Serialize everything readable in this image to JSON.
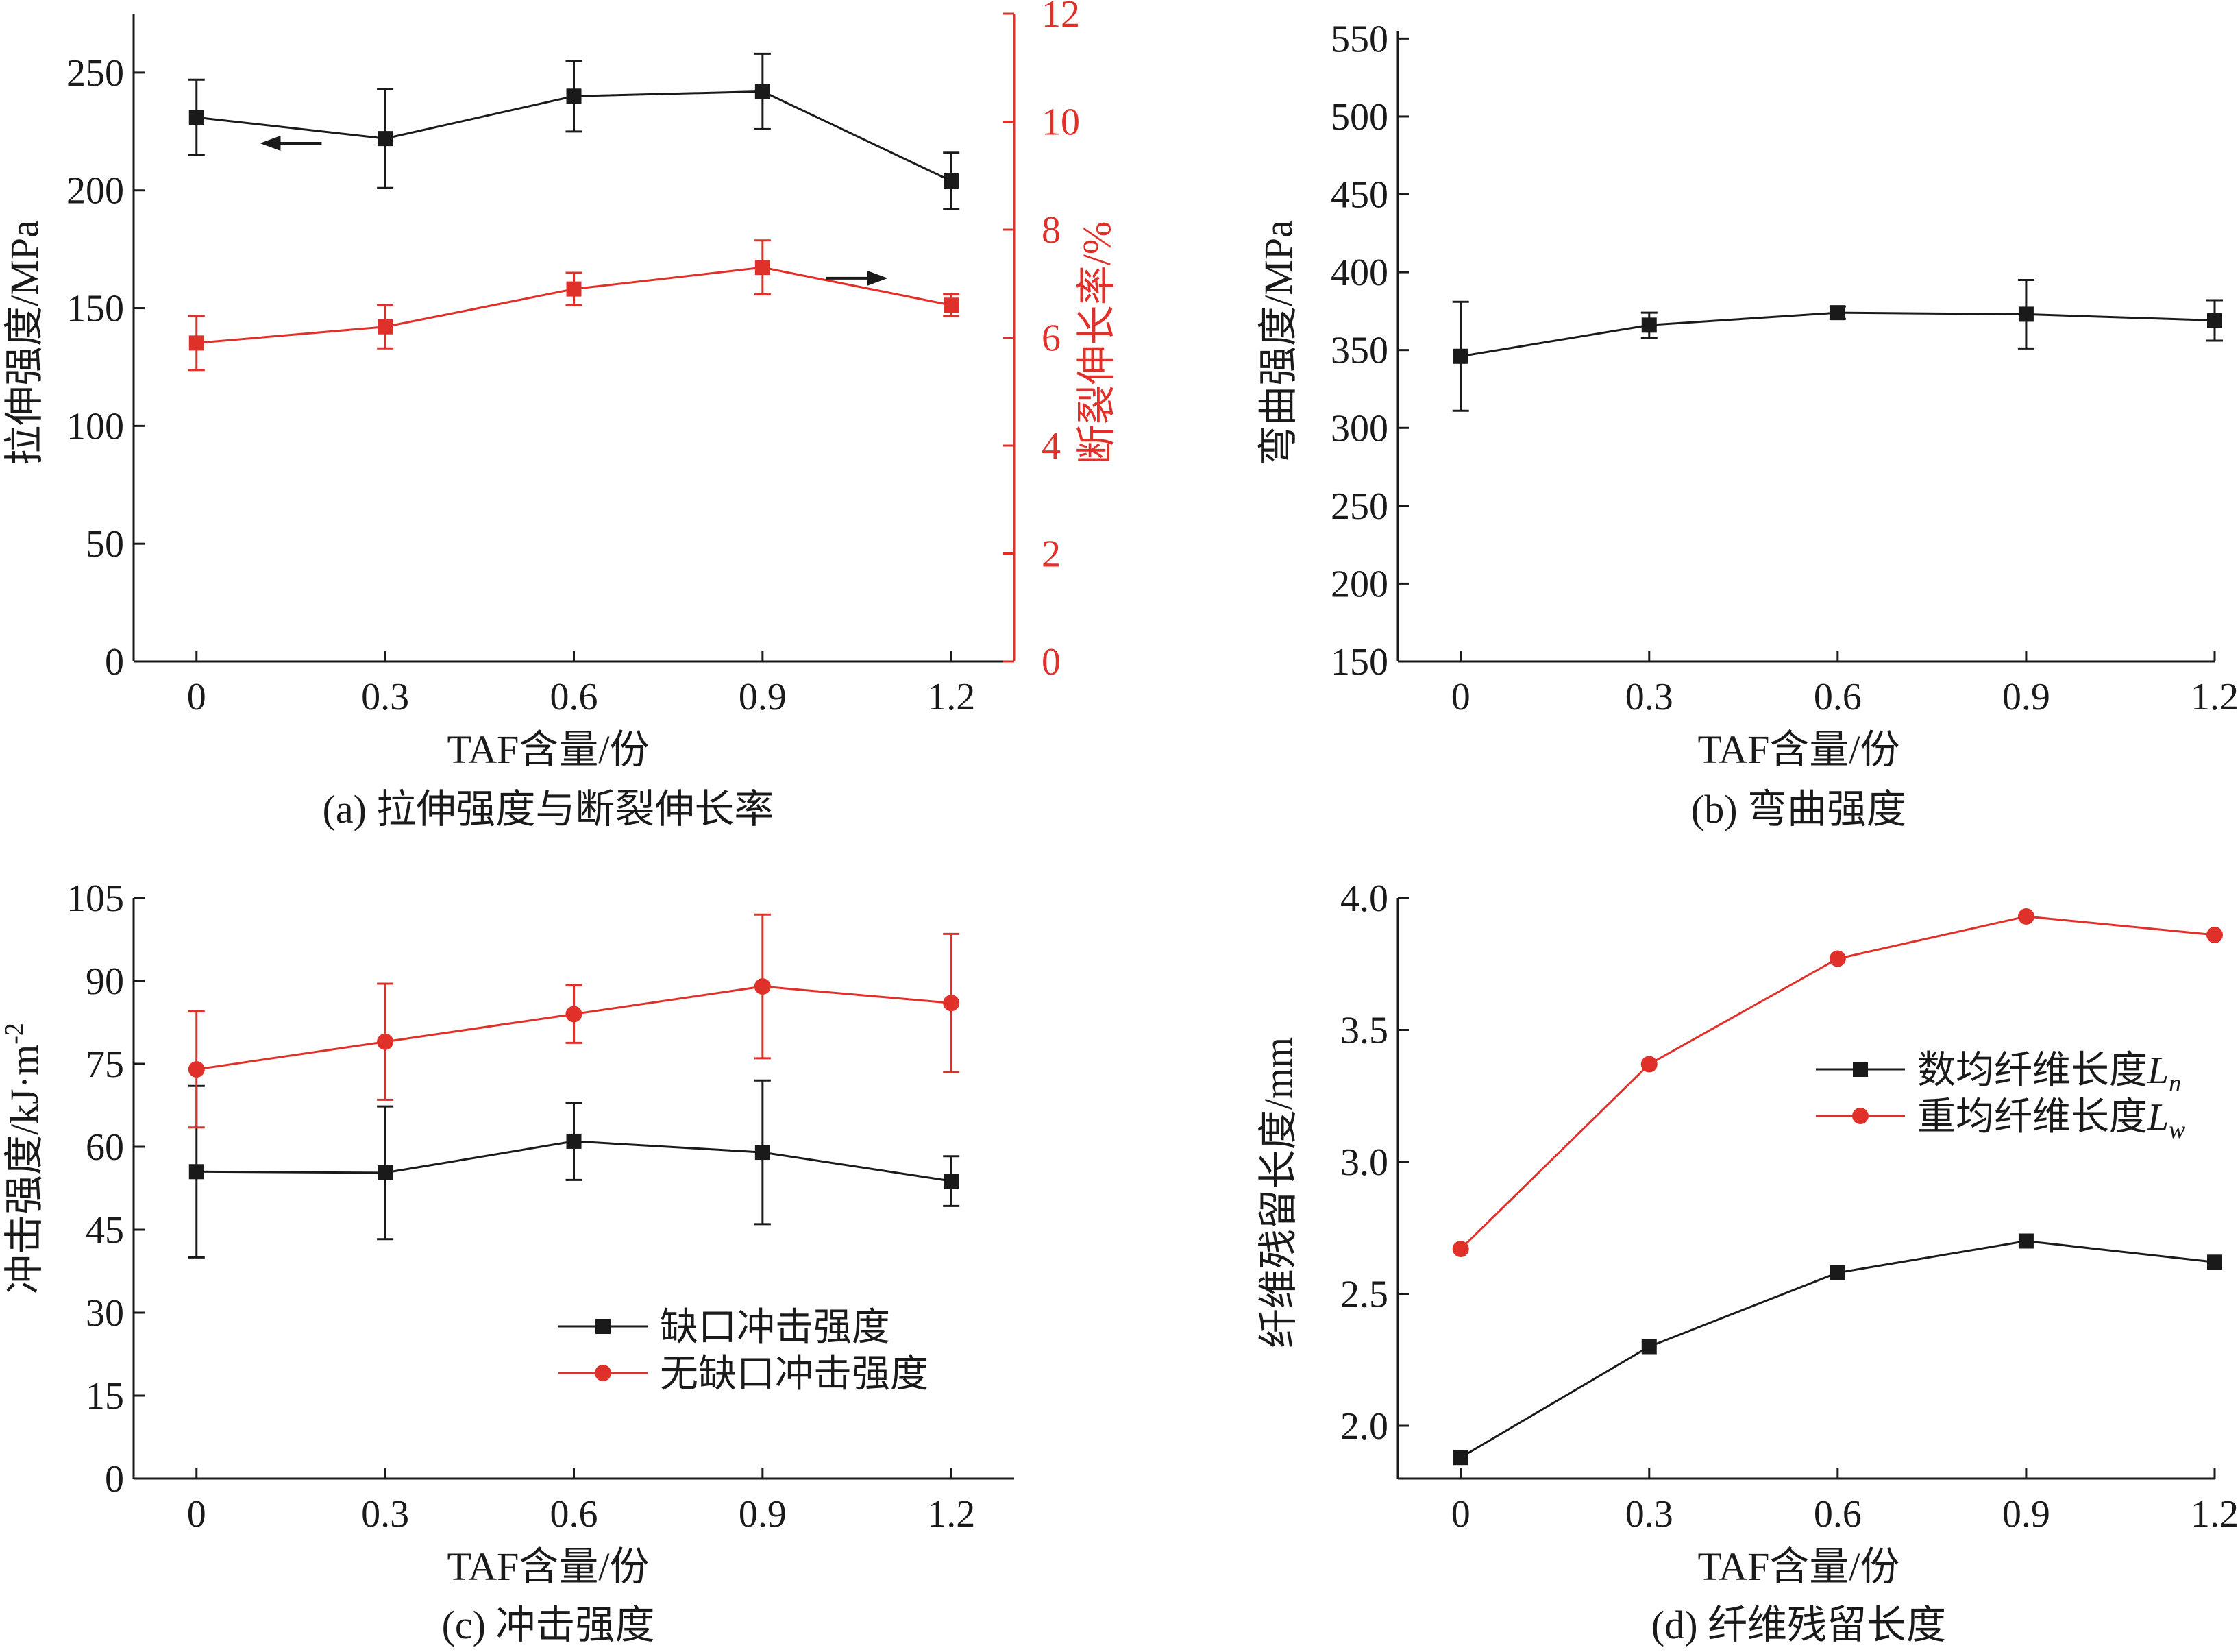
{
  "colors": {
    "black": "#1a1a1a",
    "red": "#e0302a"
  },
  "chart_data": [
    {
      "id": "a",
      "type": "line",
      "caption": "(a) 拉伸强度与断裂伸长率",
      "xlabel": "TAF含量/份",
      "ylabel": "拉伸强度/MPa",
      "y2label": "断裂伸长率/%",
      "x": [
        0,
        0.3,
        0.6,
        0.9,
        1.2
      ],
      "xticks": [
        "0",
        "0.3",
        "0.6",
        "0.9",
        "1.2"
      ],
      "xlim": [
        -0.1,
        1.3
      ],
      "ylim": [
        0,
        275
      ],
      "yticks": [
        "0",
        "50",
        "100",
        "150",
        "200",
        "250"
      ],
      "y2lim": [
        0,
        12
      ],
      "y2ticks": [
        "0",
        "2",
        "4",
        "6",
        "8",
        "10",
        "12"
      ],
      "series": [
        {
          "axis": "left",
          "color": "#1a1a1a",
          "marker": "square",
          "values": [
            231,
            222,
            240,
            242,
            204
          ],
          "errors": [
            16,
            21,
            15,
            16,
            12
          ],
          "arrow": {
            "direction": "left",
            "x": 0.15,
            "y": 220
          }
        },
        {
          "axis": "right",
          "color": "#e0302a",
          "marker": "square",
          "values": [
            5.9,
            6.2,
            6.9,
            7.3,
            6.6
          ],
          "errors": [
            0.5,
            0.4,
            0.3,
            0.5,
            0.2
          ],
          "arrow": {
            "direction": "right",
            "x": 1.05,
            "y": 7.1
          }
        }
      ]
    },
    {
      "id": "b",
      "type": "line",
      "caption": "(b) 弯曲强度",
      "xlabel": "TAF含量/份",
      "ylabel": "弯曲强度/MPa",
      "x": [
        0,
        0.3,
        0.6,
        0.9,
        1.2
      ],
      "xticks": [
        "0",
        "0.3",
        "0.6",
        "0.9",
        "1.2"
      ],
      "xlim": [
        -0.1,
        1.2
      ],
      "ylim": [
        150,
        555
      ],
      "yticks": [
        "150",
        "200",
        "250",
        "300",
        "350",
        "400",
        "450",
        "500",
        "550"
      ],
      "series": [
        {
          "axis": "left",
          "color": "#1a1a1a",
          "marker": "square",
          "values": [
            346,
            366,
            374,
            373,
            369
          ],
          "errors": [
            35,
            8,
            4,
            22,
            13
          ]
        }
      ]
    },
    {
      "id": "c",
      "type": "line",
      "caption": "(c) 冲击强度",
      "xlabel": "TAF含量/份",
      "ylabel": "冲击强度/kJ·m",
      "ylabel_sup": "-2",
      "x": [
        0,
        0.3,
        0.6,
        0.9,
        1.2
      ],
      "xticks": [
        "0",
        "0.3",
        "0.6",
        "0.9",
        "1.2"
      ],
      "xlim": [
        -0.1,
        1.3
      ],
      "ylim": [
        0,
        105
      ],
      "yticks": [
        "0",
        "15",
        "30",
        "45",
        "60",
        "75",
        "90",
        "105"
      ],
      "legend_position": "center-right",
      "series": [
        {
          "name": "缺口冲击强度",
          "axis": "left",
          "color": "#1a1a1a",
          "marker": "square",
          "values": [
            55.5,
            55.3,
            61,
            59,
            53.8
          ],
          "errors": [
            15.5,
            12,
            7,
            13,
            4.5
          ]
        },
        {
          "name": "无缺口冲击强度",
          "axis": "left",
          "color": "#e0302a",
          "marker": "circle",
          "values": [
            74,
            79,
            84,
            89,
            86
          ],
          "errors": [
            10.5,
            10.5,
            5.2,
            13,
            12.5
          ]
        }
      ]
    },
    {
      "id": "d",
      "type": "line",
      "caption": "(d) 纤维残留长度",
      "xlabel": "TAF含量/份",
      "ylabel": "纤维残留长度/mm",
      "x": [
        0,
        0.3,
        0.6,
        0.9,
        1.2
      ],
      "xticks": [
        "0",
        "0.3",
        "0.6",
        "0.9",
        "1.2"
      ],
      "xlim": [
        -0.1,
        1.2
      ],
      "ylim": [
        1.8,
        4.0
      ],
      "yticks": [
        "2.0",
        "2.5",
        "3.0",
        "3.5",
        "4.0"
      ],
      "legend_position": "center-right",
      "series": [
        {
          "name": "数均纤维长度",
          "name_sub": "n",
          "axis": "left",
          "color": "#1a1a1a",
          "marker": "square",
          "values": [
            1.88,
            2.3,
            2.58,
            2.7,
            2.62
          ]
        },
        {
          "name": "重均纤维长度",
          "name_sub": "w",
          "axis": "left",
          "color": "#e0302a",
          "marker": "circle",
          "values": [
            2.67,
            3.37,
            3.77,
            3.93,
            3.86
          ]
        }
      ]
    }
  ]
}
